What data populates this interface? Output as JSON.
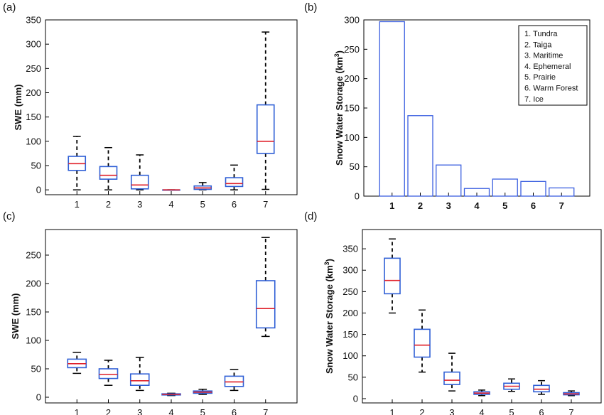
{
  "panel_labels": [
    "(a)",
    "(b)",
    "(c)",
    "(d)"
  ],
  "colors": {
    "box": "#2f5fd6",
    "median": "#e0202a",
    "whisker": "#000000",
    "bar": "#3b5fe0",
    "axis": "#000000"
  },
  "chart_data": [
    {
      "type": "box",
      "title": "",
      "xlabel": "",
      "ylabel": "SWE (mm)",
      "categories": [
        "1",
        "2",
        "3",
        "4",
        "5",
        "6",
        "7"
      ],
      "ylim": [
        -10,
        350
      ],
      "yticks": [
        0,
        50,
        100,
        150,
        200,
        250,
        300,
        350
      ],
      "boxes": [
        {
          "min": 0,
          "q1": 40,
          "median": 54,
          "q3": 69,
          "max": 110
        },
        {
          "min": 0,
          "q1": 22,
          "median": 30,
          "q3": 48,
          "max": 87
        },
        {
          "min": 0,
          "q1": 2,
          "median": 10,
          "q3": 30,
          "max": 72
        },
        {
          "min": 0,
          "q1": 0,
          "median": 0,
          "q3": 0,
          "max": 0
        },
        {
          "min": 0,
          "q1": 1,
          "median": 4,
          "q3": 8,
          "max": 15
        },
        {
          "min": 0,
          "q1": 7,
          "median": 13,
          "q3": 25,
          "max": 51
        },
        {
          "min": 1,
          "q1": 75,
          "median": 100,
          "q3": 175,
          "max": 325
        }
      ]
    },
    {
      "type": "bar",
      "title": "",
      "xlabel": "",
      "ylabel": "Snow Water Storage (km",
      "ylabel_sup": "3",
      "ylabel_close": ")",
      "categories": [
        "1",
        "2",
        "3",
        "4",
        "5",
        "6",
        "7"
      ],
      "values": [
        297,
        137,
        53,
        13,
        29,
        25,
        14
      ],
      "ylim": [
        0,
        300
      ],
      "yticks": [
        0,
        50,
        100,
        150,
        200,
        250,
        300
      ],
      "legend": {
        "position": "top-right",
        "entries": [
          "1.  Tundra",
          "2.  Taiga",
          "3.  Maritime",
          "4.  Ephemeral",
          "5.  Prairie",
          "6.  Warm Forest",
          "7.  Ice"
        ]
      }
    },
    {
      "type": "box",
      "title": "",
      "xlabel": "",
      "ylabel": "SWE (mm)",
      "categories": [
        "1",
        "2",
        "3",
        "4",
        "5",
        "6",
        "7"
      ],
      "ylim": [
        -10,
        295
      ],
      "yticks": [
        0,
        50,
        100,
        150,
        200,
        250
      ],
      "boxes": [
        {
          "min": 42,
          "q1": 52,
          "median": 59,
          "q3": 67,
          "max": 79
        },
        {
          "min": 21,
          "q1": 33,
          "median": 40,
          "q3": 50,
          "max": 65
        },
        {
          "min": 12,
          "q1": 21,
          "median": 29,
          "q3": 41,
          "max": 70
        },
        {
          "min": 3,
          "q1": 4,
          "median": 5,
          "q3": 6,
          "max": 7
        },
        {
          "min": 5,
          "q1": 7,
          "median": 9,
          "q3": 11,
          "max": 14
        },
        {
          "min": 12,
          "q1": 19,
          "median": 27,
          "q3": 37,
          "max": 49
        },
        {
          "min": 107,
          "q1": 122,
          "median": 156,
          "q3": 205,
          "max": 281
        }
      ]
    },
    {
      "type": "box",
      "title": "",
      "xlabel": "",
      "ylabel": "Snow Water Storage (km",
      "ylabel_sup": "3",
      "ylabel_close": ")",
      "categories": [
        "1",
        "2",
        "3",
        "4",
        "5",
        "6",
        "7"
      ],
      "ylim": [
        -10,
        395
      ],
      "yticks": [
        0,
        50,
        100,
        150,
        200,
        250,
        300,
        350
      ],
      "boxes": [
        {
          "min": 200,
          "q1": 245,
          "median": 276,
          "q3": 328,
          "max": 373
        },
        {
          "min": 62,
          "q1": 97,
          "median": 125,
          "q3": 162,
          "max": 207
        },
        {
          "min": 18,
          "q1": 33,
          "median": 43,
          "q3": 62,
          "max": 106
        },
        {
          "min": 7,
          "q1": 10,
          "median": 13,
          "q3": 16,
          "max": 20
        },
        {
          "min": 17,
          "q1": 22,
          "median": 29,
          "q3": 36,
          "max": 46
        },
        {
          "min": 10,
          "q1": 16,
          "median": 22,
          "q3": 31,
          "max": 42
        },
        {
          "min": 7,
          "q1": 9,
          "median": 11,
          "q3": 14,
          "max": 18
        }
      ]
    }
  ]
}
